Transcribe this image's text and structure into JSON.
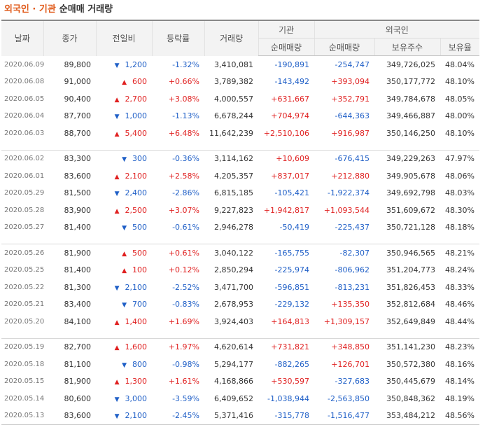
{
  "title": {
    "part1": "외국인 · 기관",
    "part2": "순매매 거래량"
  },
  "headers": {
    "date": "날짜",
    "close": "종가",
    "change": "전일비",
    "rate": "등락률",
    "volume": "거래량",
    "inst_group": "기관",
    "foreign_group": "외국인",
    "inst_net": "순매매량",
    "foreign_net": "순매매량",
    "foreign_shares": "보유주수",
    "foreign_ratio": "보유율"
  },
  "colors": {
    "up": "#e02020",
    "down": "#1f5fc7",
    "accent": "#e05a1a"
  },
  "rows": [
    {
      "date": "2020.06.09",
      "close": "89,800",
      "dir": "down",
      "change": "1,200",
      "rate": "-1.32%",
      "volume": "3,410,081",
      "inst": "-190,891",
      "foreign": "-254,747",
      "shares": "349,726,025",
      "ratio": "48.04%"
    },
    {
      "date": "2020.06.08",
      "close": "91,000",
      "dir": "up",
      "change": "600",
      "rate": "+0.66%",
      "volume": "3,789,382",
      "inst": "-143,492",
      "foreign": "+393,094",
      "shares": "350,177,772",
      "ratio": "48.10%"
    },
    {
      "date": "2020.06.05",
      "close": "90,400",
      "dir": "up",
      "change": "2,700",
      "rate": "+3.08%",
      "volume": "4,000,557",
      "inst": "+631,667",
      "foreign": "+352,791",
      "shares": "349,784,678",
      "ratio": "48.05%"
    },
    {
      "date": "2020.06.04",
      "close": "87,700",
      "dir": "down",
      "change": "1,000",
      "rate": "-1.13%",
      "volume": "6,678,244",
      "inst": "+704,974",
      "foreign": "-644,363",
      "shares": "349,466,887",
      "ratio": "48.00%"
    },
    {
      "date": "2020.06.03",
      "close": "88,700",
      "dir": "up",
      "change": "5,400",
      "rate": "+6.48%",
      "volume": "11,642,239",
      "inst": "+2,510,106",
      "foreign": "+916,987",
      "shares": "350,146,250",
      "ratio": "48.10%"
    },
    {
      "date": "2020.06.02",
      "close": "83,300",
      "dir": "down",
      "change": "300",
      "rate": "-0.36%",
      "volume": "3,114,162",
      "inst": "+10,609",
      "foreign": "-676,415",
      "shares": "349,229,263",
      "ratio": "47.97%"
    },
    {
      "date": "2020.06.01",
      "close": "83,600",
      "dir": "up",
      "change": "2,100",
      "rate": "+2.58%",
      "volume": "4,205,357",
      "inst": "+837,017",
      "foreign": "+212,880",
      "shares": "349,905,678",
      "ratio": "48.06%"
    },
    {
      "date": "2020.05.29",
      "close": "81,500",
      "dir": "down",
      "change": "2,400",
      "rate": "-2.86%",
      "volume": "6,815,185",
      "inst": "-105,421",
      "foreign": "-1,922,374",
      "shares": "349,692,798",
      "ratio": "48.03%"
    },
    {
      "date": "2020.05.28",
      "close": "83,900",
      "dir": "up",
      "change": "2,500",
      "rate": "+3.07%",
      "volume": "9,227,823",
      "inst": "+1,942,817",
      "foreign": "+1,093,544",
      "shares": "351,609,672",
      "ratio": "48.30%"
    },
    {
      "date": "2020.05.27",
      "close": "81,400",
      "dir": "down",
      "change": "500",
      "rate": "-0.61%",
      "volume": "2,946,278",
      "inst": "-50,419",
      "foreign": "-225,437",
      "shares": "350,721,128",
      "ratio": "48.18%"
    },
    {
      "date": "2020.05.26",
      "close": "81,900",
      "dir": "up",
      "change": "500",
      "rate": "+0.61%",
      "volume": "3,040,122",
      "inst": "-165,755",
      "foreign": "-82,307",
      "shares": "350,946,565",
      "ratio": "48.21%"
    },
    {
      "date": "2020.05.25",
      "close": "81,400",
      "dir": "up",
      "change": "100",
      "rate": "+0.12%",
      "volume": "2,850,294",
      "inst": "-225,974",
      "foreign": "-806,962",
      "shares": "351,204,773",
      "ratio": "48.24%"
    },
    {
      "date": "2020.05.22",
      "close": "81,300",
      "dir": "down",
      "change": "2,100",
      "rate": "-2.52%",
      "volume": "3,471,700",
      "inst": "-596,851",
      "foreign": "-813,231",
      "shares": "351,826,453",
      "ratio": "48.33%"
    },
    {
      "date": "2020.05.21",
      "close": "83,400",
      "dir": "down",
      "change": "700",
      "rate": "-0.83%",
      "volume": "2,678,953",
      "inst": "-229,132",
      "foreign": "+135,350",
      "shares": "352,812,684",
      "ratio": "48.46%"
    },
    {
      "date": "2020.05.20",
      "close": "84,100",
      "dir": "up",
      "change": "1,400",
      "rate": "+1.69%",
      "volume": "3,924,403",
      "inst": "+164,813",
      "foreign": "+1,309,157",
      "shares": "352,649,849",
      "ratio": "48.44%"
    },
    {
      "date": "2020.05.19",
      "close": "82,700",
      "dir": "up",
      "change": "1,600",
      "rate": "+1.97%",
      "volume": "4,620,614",
      "inst": "+731,821",
      "foreign": "+348,850",
      "shares": "351,141,230",
      "ratio": "48.23%"
    },
    {
      "date": "2020.05.18",
      "close": "81,100",
      "dir": "down",
      "change": "800",
      "rate": "-0.98%",
      "volume": "5,294,177",
      "inst": "-882,265",
      "foreign": "+126,701",
      "shares": "350,572,380",
      "ratio": "48.16%"
    },
    {
      "date": "2020.05.15",
      "close": "81,900",
      "dir": "up",
      "change": "1,300",
      "rate": "+1.61%",
      "volume": "4,168,866",
      "inst": "+530,597",
      "foreign": "-327,683",
      "shares": "350,445,679",
      "ratio": "48.14%"
    },
    {
      "date": "2020.05.14",
      "close": "80,600",
      "dir": "down",
      "change": "3,000",
      "rate": "-3.59%",
      "volume": "6,409,652",
      "inst": "-1,038,944",
      "foreign": "-2,563,850",
      "shares": "350,848,362",
      "ratio": "48.19%"
    },
    {
      "date": "2020.05.13",
      "close": "83,600",
      "dir": "down",
      "change": "2,100",
      "rate": "-2.45%",
      "volume": "5,371,416",
      "inst": "-315,778",
      "foreign": "-1,516,477",
      "shares": "353,484,212",
      "ratio": "48.56%"
    }
  ]
}
